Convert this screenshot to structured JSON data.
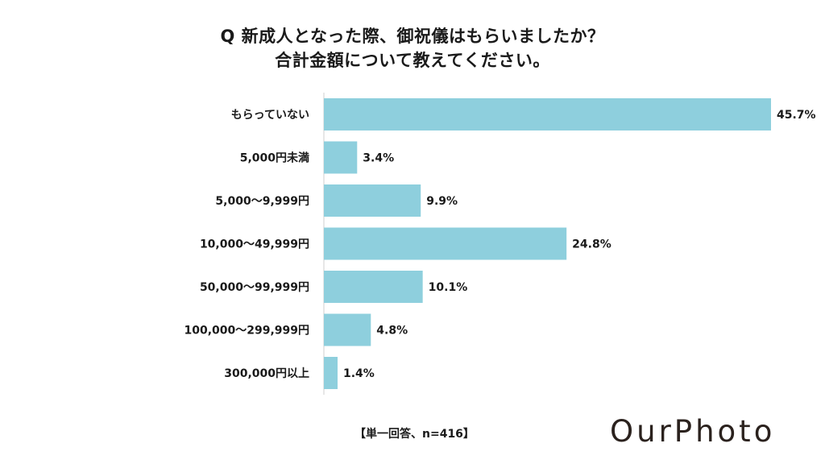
{
  "title": {
    "line1": "Q 新成人となった際、御祝儀はもらいましたか？",
    "line2": "合計金額について教えてください。"
  },
  "footnote": "【単一回答、n=416】",
  "logo": "OurPhoto",
  "colors": {
    "bar": "#8ecfdd",
    "axis": "#cfcfcf",
    "text": "#1a1a1a"
  },
  "chart_data": {
    "type": "bar",
    "orientation": "horizontal",
    "categories": [
      "もらっていない",
      "5,000円未満",
      "5,000～9,999円",
      "10,000～49,999円",
      "50,000～99,999円",
      "100,000～299,999円",
      "300,000円以上"
    ],
    "values": [
      45.7,
      3.4,
      9.9,
      24.8,
      10.1,
      4.8,
      1.4
    ],
    "value_labels": [
      "45.7%",
      "3.4%",
      "9.9%",
      "24.8%",
      "10.1%",
      "4.8%",
      "1.4%"
    ],
    "unit": "%",
    "xlim": [
      0,
      45.7
    ],
    "grid": false,
    "legend": "none"
  }
}
